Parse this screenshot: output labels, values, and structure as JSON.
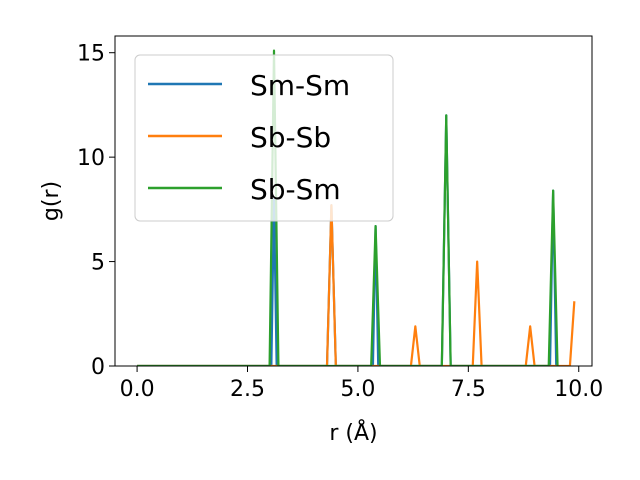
{
  "chart_data": {
    "type": "line",
    "title": "",
    "xlabel": "r (Å)",
    "ylabel": "g(r)",
    "xlim": [
      -0.5,
      10.3
    ],
    "ylim": [
      0,
      15.8
    ],
    "xticks": [
      0.0,
      2.5,
      5.0,
      7.5,
      10.0
    ],
    "xtick_labels": [
      "0.0",
      "2.5",
      "5.0",
      "7.5",
      "10.0"
    ],
    "yticks": [
      0,
      5,
      10,
      15
    ],
    "ytick_labels": [
      "0",
      "5",
      "10",
      "15"
    ],
    "grid": false,
    "legend_position": "top-left",
    "series": [
      {
        "name": "Sm-Sm",
        "color": "#1f77b4",
        "x": [
          0.0,
          3.04,
          3.1,
          3.16,
          4.3,
          4.4,
          4.5,
          5.34,
          5.4,
          5.46,
          6.9,
          7.0,
          7.1,
          9.35,
          9.42,
          9.49
        ],
        "y": [
          0,
          0,
          8.0,
          0,
          0,
          7.7,
          0,
          0,
          6.7,
          0,
          0,
          12.0,
          0,
          0,
          8.4,
          0
        ]
      },
      {
        "name": "Sb-Sb",
        "color": "#ff7f0e",
        "x": [
          0.0,
          4.3,
          4.4,
          4.5,
          6.2,
          6.3,
          6.4,
          7.6,
          7.7,
          7.8,
          8.8,
          8.9,
          9.0,
          9.8,
          9.9
        ],
        "y": [
          0,
          0,
          7.7,
          0,
          0,
          1.9,
          0,
          0,
          5.0,
          0,
          0,
          1.9,
          0,
          0,
          3.1
        ]
      },
      {
        "name": "Sb-Sm",
        "color": "#2ca02c",
        "x": [
          0.0,
          3.0,
          3.1,
          3.2,
          5.3,
          5.4,
          5.5,
          6.9,
          7.0,
          7.1,
          9.32,
          9.42,
          9.52
        ],
        "y": [
          0,
          0,
          15.1,
          0,
          0,
          6.7,
          0,
          0,
          12.0,
          0,
          0,
          8.4,
          0
        ]
      }
    ]
  }
}
